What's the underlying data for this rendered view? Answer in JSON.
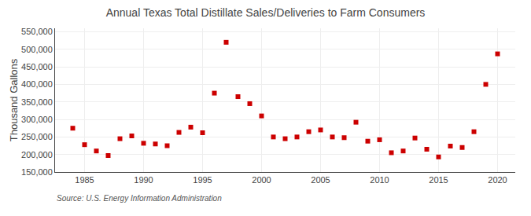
{
  "chart_data": {
    "type": "scatter",
    "title": "Annual Texas Total Distillate Sales/Deliveries to Farm Consumers",
    "ylabel": "Thousand Gallons",
    "annotations": [
      "Source: U.S. Energy Information Administration"
    ],
    "x": [
      1984,
      1985,
      1986,
      1987,
      1988,
      1989,
      1990,
      1991,
      1992,
      1993,
      1994,
      1995,
      1996,
      1997,
      1998,
      1999,
      2000,
      2001,
      2002,
      2003,
      2004,
      2005,
      2006,
      2007,
      2008,
      2009,
      2010,
      2011,
      2012,
      2013,
      2014,
      2015,
      2016,
      2017,
      2018,
      2019,
      2020
    ],
    "values": [
      275000,
      228000,
      210000,
      197000,
      245000,
      253000,
      232000,
      230000,
      225000,
      263000,
      278000,
      262000,
      375000,
      520000,
      365000,
      345000,
      310000,
      250000,
      245000,
      250000,
      265000,
      270000,
      250000,
      248000,
      292000,
      238000,
      242000,
      205000,
      210000,
      247000,
      215000,
      193000,
      224000,
      220000,
      265000,
      400000,
      487000
    ],
    "color": "#cc0000",
    "marker": "square",
    "xlim": [
      1982.5,
      2021.5
    ],
    "xticks": [
      1985,
      1990,
      1995,
      2000,
      2005,
      2010,
      2015,
      2020
    ],
    "ylim": [
      150000,
      560000
    ],
    "yticks": [
      {
        "value": 150000,
        "label": "150,000"
      },
      {
        "value": 200000,
        "label": "200,000"
      },
      {
        "value": 250000,
        "label": "250,000"
      },
      {
        "value": 300000,
        "label": "300,000"
      },
      {
        "value": 350000,
        "label": "350,000"
      },
      {
        "value": 400000,
        "label": "400,000"
      },
      {
        "value": 450000,
        "label": "450,000"
      },
      {
        "value": 500000,
        "label": "500,000"
      },
      {
        "value": 550000,
        "label": "550,000"
      }
    ],
    "grid": true
  }
}
